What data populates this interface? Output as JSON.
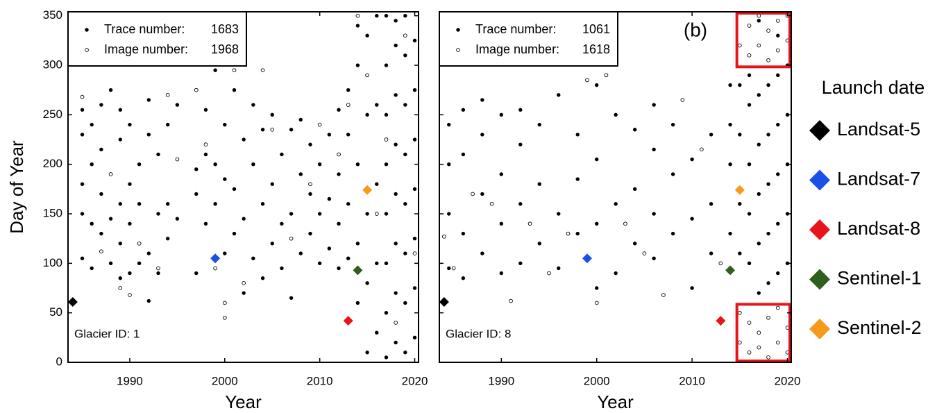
{
  "chart_data": [
    {
      "type": "scatter",
      "xlabel": "Year",
      "ylabel": "Day of Year",
      "annotation": "Glacier ID: 1",
      "xlim": [
        1983.5,
        2020.4
      ],
      "ylim": [
        0,
        354
      ],
      "xticks": [
        1990,
        2000,
        2010,
        2020
      ],
      "yticks": [
        0,
        50,
        100,
        150,
        200,
        250,
        300,
        350
      ],
      "series": [
        {
          "name": "Trace number:",
          "count": 1683,
          "marker": "filled",
          "color": "#000000",
          "x": [
            1985,
            1985,
            1985,
            1985,
            1985,
            1986,
            1986,
            1986,
            1986,
            1987,
            1987,
            1987,
            1987,
            1988,
            1988,
            1988,
            1988,
            1989,
            1989,
            1989,
            1989,
            1989,
            1990,
            1990,
            1990,
            1990,
            1991,
            1991,
            1991,
            1992,
            1992,
            1992,
            1992,
            1993,
            1993,
            1993,
            1994,
            1994,
            1994,
            1995,
            1995,
            1997,
            1997,
            1997,
            1998,
            1998,
            1998,
            1999,
            1999,
            1999,
            2000,
            2000,
            2000,
            2001,
            2001,
            2001,
            2002,
            2002,
            2002,
            2003,
            2003,
            2003,
            2004,
            2004,
            2004,
            2005,
            2005,
            2005,
            2006,
            2006,
            2006,
            2007,
            2007,
            2007,
            2008,
            2008,
            2008,
            2009,
            2009,
            2009,
            2010,
            2010,
            2010,
            2011,
            2011,
            2011,
            2012,
            2012,
            2012,
            2012,
            2013,
            2013,
            2013,
            2013,
            2014,
            2014,
            2014,
            2014,
            2014,
            2015,
            2015,
            2015,
            2015,
            2015,
            2016,
            2016,
            2016,
            2016,
            2016,
            2017,
            2017,
            2017,
            2017,
            2017,
            2017,
            2017,
            2017,
            2018,
            2018,
            2018,
            2018,
            2018,
            2018,
            2018,
            2018,
            2019,
            2019,
            2019,
            2019,
            2019,
            2019,
            2019,
            2019,
            2020,
            2020,
            2020,
            2020,
            2020,
            2020,
            2020
          ],
          "y": [
            105,
            150,
            180,
            230,
            255,
            95,
            140,
            200,
            240,
            130,
            170,
            215,
            260,
            100,
            145,
            190,
            275,
            85,
            120,
            160,
            225,
            255,
            90,
            140,
            180,
            240,
            100,
            160,
            200,
            62,
            110,
            230,
            265,
            90,
            150,
            210,
            125,
            160,
            240,
            145,
            260,
            90,
            170,
            195,
            140,
            210,
            255,
            160,
            200,
            295,
            110,
            185,
            240,
            130,
            175,
            275,
            70,
            145,
            225,
            105,
            200,
            260,
            85,
            160,
            235,
            120,
            180,
            250,
            95,
            140,
            210,
            65,
            150,
            235,
            110,
            190,
            245,
            130,
            170,
            220,
            100,
            150,
            200,
            115,
            165,
            230,
            95,
            140,
            190,
            255,
            105,
            160,
            230,
            275,
            60,
            120,
            200,
            300,
            340,
            10,
            80,
            150,
            250,
            330,
            30,
            100,
            180,
            260,
            350,
            5,
            50,
            100,
            150,
            200,
            250,
            300,
            350,
            20,
            70,
            120,
            170,
            220,
            270,
            320,
            345,
            10,
            60,
            110,
            160,
            210,
            260,
            310,
            350,
            25,
            75,
            125,
            175,
            225,
            275,
            325
          ]
        },
        {
          "name": "Image number:",
          "count": 1968,
          "marker": "open",
          "color": "#000000",
          "x": [
            1985,
            1987,
            1988,
            1989,
            1990,
            1991,
            1993,
            1994,
            1995,
            1997,
            1998,
            1999,
            2000,
            2000,
            2001,
            2002,
            2004,
            2005,
            2007,
            2009,
            2010,
            2012,
            2013,
            2014,
            2015,
            2016,
            2017,
            2018,
            2019,
            2020
          ],
          "y": [
            268,
            112,
            190,
            75,
            68,
            120,
            95,
            270,
            205,
            275,
            220,
            95,
            45,
            60,
            295,
            80,
            295,
            235,
            125,
            180,
            240,
            210,
            260,
            350,
            290,
            150,
            225,
            40,
            330,
            110
          ]
        }
      ]
    },
    {
      "type": "scatter",
      "xlabel": "Year",
      "annotation": "Glacier ID: 8",
      "panel_label": "(b)",
      "xlim": [
        1983.5,
        2020.4
      ],
      "ylim": [
        0,
        354
      ],
      "xticks": [
        1990,
        2000,
        2010,
        2020
      ],
      "yticks": [
        0,
        50,
        100,
        150,
        200,
        250,
        300,
        350
      ],
      "highlight_boxes": [
        {
          "x": [
            2014.7,
            2020.4
          ],
          "y": [
            297,
            354
          ],
          "color": "#e8141b"
        },
        {
          "x": [
            2014.7,
            2020.4
          ],
          "y": [
            0,
            60
          ],
          "color": "#e8141b"
        }
      ],
      "series": [
        {
          "name": "Trace number:",
          "count": 1061,
          "marker": "filled",
          "color": "#000000",
          "x": [
            1984.5,
            1984.5,
            1984.5,
            1984.5,
            1986,
            1986,
            1986,
            1986,
            1988,
            1988,
            1988,
            1988,
            1990,
            1990,
            1990,
            1990,
            1992,
            1992,
            1992,
            1992,
            1994,
            1994,
            1994,
            1996,
            1996,
            1996,
            1998,
            1998,
            1998,
            2000,
            2000,
            2000,
            2000,
            2002,
            2002,
            2002,
            2004,
            2004,
            2004,
            2006,
            2006,
            2006,
            2006,
            2008,
            2008,
            2008,
            2010,
            2010,
            2010,
            2012,
            2012,
            2012,
            2014,
            2014,
            2014,
            2014,
            2015,
            2015,
            2015,
            2015,
            2016,
            2016,
            2016,
            2016,
            2016,
            2017,
            2017,
            2017,
            2017,
            2017,
            2017,
            2018,
            2018,
            2018,
            2018,
            2018,
            2019,
            2019,
            2019,
            2019,
            2019,
            2019,
            2020,
            2020,
            2020,
            2020,
            2020
          ],
          "y": [
            95,
            150,
            200,
            240,
            85,
            130,
            210,
            255,
            110,
            170,
            230,
            265,
            90,
            140,
            190,
            250,
            100,
            160,
            220,
            255,
            120,
            180,
            240,
            95,
            150,
            270,
            130,
            185,
            230,
            75,
            140,
            205,
            280,
            90,
            160,
            250,
            120,
            175,
            235,
            105,
            150,
            215,
            260,
            130,
            190,
            240,
            75,
            145,
            205,
            110,
            160,
            230,
            130,
            200,
            240,
            280,
            110,
            160,
            230,
            280,
            100,
            150,
            200,
            260,
            290,
            70,
            120,
            170,
            220,
            270,
            345,
            80,
            130,
            180,
            230,
            280,
            90,
            140,
            190,
            240,
            290,
            330,
            100,
            150,
            200,
            250,
            300
          ]
        },
        {
          "name": "Image number:",
          "count": 1618,
          "marker": "open",
          "color": "#000000",
          "x": [
            1984,
            1985,
            1987,
            1989,
            1991,
            1993,
            1995,
            1997,
            1999,
            2000,
            2001,
            2003,
            2005,
            2007,
            2009,
            2011,
            2013,
            2015,
            2015,
            2015,
            2016,
            2016,
            2016,
            2016,
            2017,
            2017,
            2017,
            2017,
            2018,
            2018,
            2018,
            2018,
            2019,
            2019,
            2019,
            2019,
            2020,
            2020,
            2020,
            2020
          ],
          "y": [
            127,
            95,
            170,
            160,
            62,
            140,
            90,
            130,
            285,
            60,
            290,
            140,
            110,
            68,
            265,
            215,
            100,
            20,
            50,
            320,
            10,
            40,
            310,
            340,
            15,
            30,
            320,
            350,
            5,
            45,
            305,
            335,
            20,
            55,
            315,
            345,
            10,
            35,
            325,
            350
          ]
        }
      ]
    }
  ],
  "launch_legend": {
    "title": "Launch date",
    "series": [
      {
        "name": "Landsat-5",
        "color": "#000000",
        "x": 1984,
        "y": 61
      },
      {
        "name": "Landsat-7",
        "color": "#1a4fe8",
        "x": 1999,
        "y": 105
      },
      {
        "name": "Landsat-8",
        "color": "#e8141b",
        "x": 2013,
        "y": 42
      },
      {
        "name": "Sentinel-1",
        "color": "#2f5e1f",
        "x": 2014,
        "y": 93
      },
      {
        "name": "Sentinel-2",
        "color": "#f59a1b",
        "x": 2015,
        "y": 174
      }
    ]
  }
}
